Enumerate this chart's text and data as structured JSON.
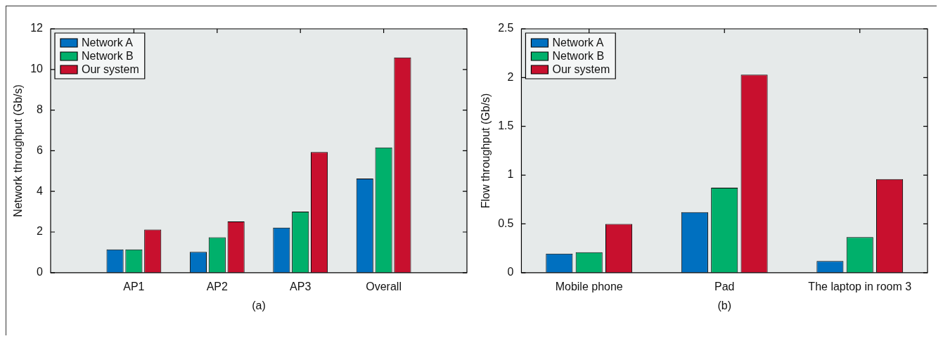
{
  "chart_data": [
    {
      "type": "bar",
      "ylabel": "Network throughput (Gb/s)",
      "categories": [
        "AP1",
        "AP2",
        "AP3",
        "Overall"
      ],
      "series": [
        {
          "name": "Network A",
          "color": "#0070c0",
          "values": [
            1.14,
            1.02,
            2.22,
            4.63
          ]
        },
        {
          "name": "Network B",
          "color": "#00b06b",
          "values": [
            1.14,
            1.74,
            3.0,
            6.16
          ]
        },
        {
          "name": "Our system",
          "color": "#c8102e",
          "values": [
            2.12,
            2.52,
            5.94,
            10.59
          ]
        }
      ],
      "ylim": [
        0,
        12
      ],
      "yticks": [
        0,
        2,
        4,
        6,
        8,
        10,
        12
      ],
      "legend": "top left",
      "annotations": [
        "(a)"
      ]
    },
    {
      "type": "bar",
      "ylabel": "Flow throughput (Gb/s)",
      "categories": [
        "Mobile phone",
        "Pad",
        "The laptop in room 3"
      ],
      "series": [
        {
          "name": "Network A",
          "color": "#0070c0",
          "values": [
            0.195,
            0.62,
            0.12
          ]
        },
        {
          "name": "Network B",
          "color": "#00b06b",
          "values": [
            0.21,
            0.87,
            0.365
          ]
        },
        {
          "name": "Our system",
          "color": "#c8102e",
          "values": [
            0.5,
            2.03,
            0.96
          ]
        }
      ],
      "ylim": [
        0,
        2.5
      ],
      "yticks": [
        0,
        0.5,
        1,
        1.5,
        2,
        2.5
      ],
      "legend": "top left",
      "annotations": [
        "(b)"
      ]
    }
  ]
}
